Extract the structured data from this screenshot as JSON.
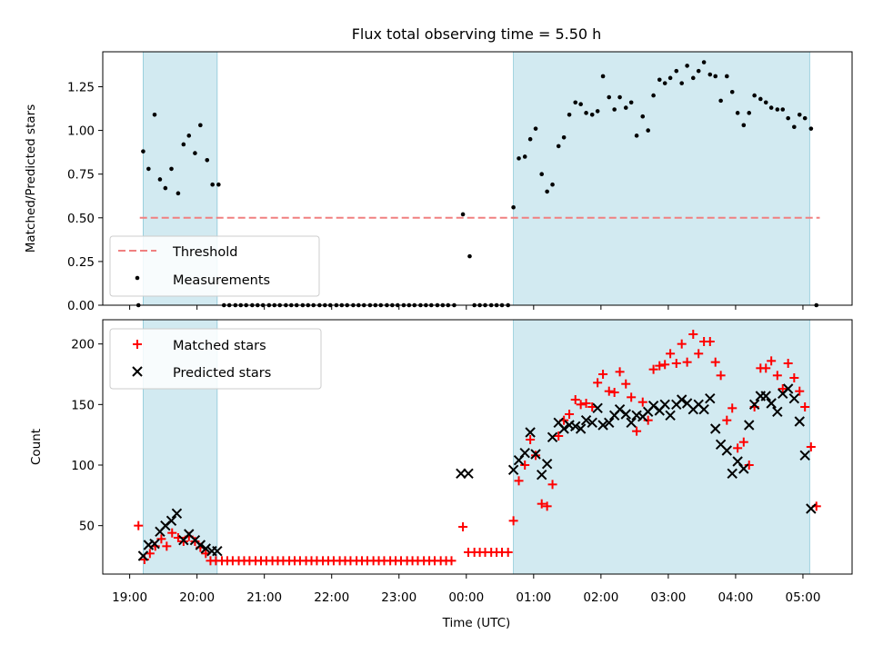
{
  "figure": {
    "title": "Flux total observing time = 5.50 h",
    "xlabel": "Time (UTC)",
    "x_ticks": [
      "19:00",
      "20:00",
      "21:00",
      "22:00",
      "23:00",
      "00:00",
      "01:00",
      "02:00",
      "03:00",
      "04:00",
      "05:00"
    ]
  },
  "chart_data": [
    {
      "type": "scatter",
      "panel": "top",
      "ylabel": "Matched/Predicted stars",
      "ylim": [
        0,
        1.45
      ],
      "xlim_hours": [
        18.6,
        29.73
      ],
      "y_ticks": [
        "0.00",
        "0.25",
        "0.50",
        "0.75",
        "1.00",
        "1.25"
      ],
      "y_tick_values": [
        0,
        0.25,
        0.5,
        0.75,
        1.0,
        1.25
      ],
      "legend": {
        "placement": "lower-left",
        "entries": [
          "Threshold",
          "Measurements"
        ]
      },
      "threshold": {
        "name": "Threshold",
        "value": 0.5,
        "x_range_hours": [
          19.15,
          29.25
        ],
        "color": "#f08080"
      },
      "shaded_hours": [
        [
          19.2,
          20.3
        ],
        [
          24.7,
          29.1
        ]
      ],
      "shade_color": "#add8e6",
      "series": [
        {
          "name": "Measurements",
          "color": "#000000",
          "x_hours": [
            19.13,
            19.2,
            19.28,
            19.37,
            19.45,
            19.53,
            19.62,
            19.72,
            19.8,
            19.88,
            19.97,
            20.05,
            20.15,
            20.23,
            20.32,
            20.4,
            20.48,
            20.57,
            20.65,
            20.73,
            20.82,
            20.9,
            20.98,
            21.07,
            21.15,
            21.23,
            21.32,
            21.4,
            21.48,
            21.57,
            21.65,
            21.73,
            21.82,
            21.9,
            21.98,
            22.07,
            22.15,
            22.23,
            22.32,
            22.4,
            22.48,
            22.57,
            22.65,
            22.73,
            22.82,
            22.9,
            22.98,
            23.07,
            23.15,
            23.23,
            23.32,
            23.4,
            23.48,
            23.57,
            23.65,
            23.73,
            23.82,
            23.95,
            24.05,
            24.12,
            24.2,
            24.28,
            24.37,
            24.45,
            24.53,
            24.62,
            24.7,
            24.78,
            24.87,
            24.95,
            25.03,
            25.12,
            25.2,
            25.28,
            25.37,
            25.45,
            25.53,
            25.62,
            25.7,
            25.78,
            25.87,
            25.95,
            26.03,
            26.12,
            26.2,
            26.28,
            26.37,
            26.45,
            26.53,
            26.62,
            26.7,
            26.78,
            26.87,
            26.95,
            27.03,
            27.12,
            27.2,
            27.28,
            27.37,
            27.45,
            27.53,
            27.62,
            27.7,
            27.78,
            27.87,
            27.95,
            28.03,
            28.12,
            28.2,
            28.28,
            28.37,
            28.45,
            28.53,
            28.62,
            28.7,
            28.78,
            28.87,
            28.95,
            29.03,
            29.12,
            29.2
          ],
          "y": [
            0.0,
            0.88,
            0.78,
            1.09,
            0.72,
            0.67,
            0.78,
            0.64,
            0.92,
            0.97,
            0.87,
            1.03,
            0.83,
            0.69,
            0.69,
            0.0,
            0.0,
            0.0,
            0.0,
            0.0,
            0.0,
            0.0,
            0.0,
            0.0,
            0.0,
            0.0,
            0.0,
            0.0,
            0.0,
            0.0,
            0.0,
            0.0,
            0.0,
            0.0,
            0.0,
            0.0,
            0.0,
            0.0,
            0.0,
            0.0,
            0.0,
            0.0,
            0.0,
            0.0,
            0.0,
            0.0,
            0.0,
            0.0,
            0.0,
            0.0,
            0.0,
            0.0,
            0.0,
            0.0,
            0.0,
            0.0,
            0.0,
            0.52,
            0.28,
            0.0,
            0.0,
            0.0,
            0.0,
            0.0,
            0.0,
            0.0,
            0.56,
            0.84,
            0.85,
            0.95,
            1.01,
            0.75,
            0.65,
            0.69,
            0.91,
            0.96,
            1.09,
            1.16,
            1.15,
            1.1,
            1.09,
            1.11,
            1.31,
            1.19,
            1.12,
            1.19,
            1.13,
            1.16,
            0.97,
            1.08,
            1.0,
            1.2,
            1.29,
            1.27,
            1.3,
            1.34,
            1.27,
            1.37,
            1.3,
            1.34,
            1.39,
            1.32,
            1.31,
            1.17,
            1.31,
            1.22,
            1.1,
            1.03,
            1.1,
            1.2,
            1.18,
            1.16,
            1.13,
            1.12,
            1.12,
            1.07,
            1.02,
            1.09,
            1.07,
            1.01,
            0.0
          ]
        }
      ]
    },
    {
      "type": "scatter",
      "panel": "bottom",
      "ylabel": "Count",
      "ylim": [
        10,
        220
      ],
      "xlim_hours": [
        18.6,
        29.73
      ],
      "y_ticks": [
        "50",
        "100",
        "150",
        "200"
      ],
      "y_tick_values": [
        50,
        100,
        150,
        200
      ],
      "legend": {
        "placement": "upper-left",
        "entries": [
          "Matched stars",
          "Predicted stars"
        ]
      },
      "shaded_hours": [
        [
          19.2,
          20.3
        ],
        [
          24.7,
          29.1
        ]
      ],
      "shade_color": "#add8e6",
      "series": [
        {
          "name": "Matched stars",
          "marker": "plus",
          "color": "#ff0000",
          "x_hours": [
            19.13,
            19.22,
            19.3,
            19.38,
            19.47,
            19.55,
            19.63,
            19.72,
            19.8,
            19.88,
            19.97,
            20.05,
            20.13,
            20.2,
            20.28,
            20.37,
            20.45,
            20.53,
            20.62,
            20.7,
            20.78,
            20.87,
            20.95,
            21.03,
            21.12,
            21.2,
            21.28,
            21.37,
            21.45,
            21.53,
            21.62,
            21.7,
            21.78,
            21.87,
            21.95,
            22.03,
            22.12,
            22.2,
            22.28,
            22.37,
            22.45,
            22.53,
            22.62,
            22.7,
            22.78,
            22.87,
            22.95,
            23.03,
            23.12,
            23.2,
            23.28,
            23.37,
            23.45,
            23.53,
            23.62,
            23.7,
            23.78,
            23.95,
            24.03,
            24.12,
            24.2,
            24.28,
            24.37,
            24.45,
            24.53,
            24.62,
            24.7,
            24.78,
            24.87,
            24.95,
            25.03,
            25.12,
            25.2,
            25.28,
            25.37,
            25.45,
            25.53,
            25.62,
            25.7,
            25.78,
            25.87,
            25.95,
            26.03,
            26.12,
            26.2,
            26.28,
            26.37,
            26.45,
            26.53,
            26.62,
            26.7,
            26.78,
            26.87,
            26.95,
            27.03,
            27.12,
            27.2,
            27.28,
            27.37,
            27.45,
            27.53,
            27.62,
            27.7,
            27.78,
            27.87,
            27.95,
            28.03,
            28.12,
            28.2,
            28.28,
            28.37,
            28.45,
            28.53,
            28.62,
            28.7,
            28.78,
            28.87,
            28.95,
            29.03,
            29.12,
            29.2
          ],
          "y": [
            50,
            22,
            27,
            33,
            39,
            33,
            44,
            40,
            37,
            41,
            37,
            32,
            27,
            21,
            21,
            21,
            21,
            21,
            21,
            21,
            21,
            21,
            21,
            21,
            21,
            21,
            21,
            21,
            21,
            21,
            21,
            21,
            21,
            21,
            21,
            21,
            21,
            21,
            21,
            21,
            21,
            21,
            21,
            21,
            21,
            21,
            21,
            21,
            21,
            21,
            21,
            21,
            21,
            21,
            21,
            21,
            21,
            49,
            28,
            28,
            28,
            28,
            28,
            28,
            28,
            28,
            54,
            87,
            100,
            121,
            108,
            68,
            66,
            84,
            124,
            137,
            142,
            154,
            150,
            151,
            148,
            168,
            175,
            161,
            160,
            177,
            167,
            156,
            128,
            152,
            137,
            179,
            182,
            183,
            192,
            184,
            200,
            185,
            208,
            192,
            202,
            202,
            185,
            174,
            137,
            147,
            114,
            119,
            100,
            148,
            180,
            180,
            186,
            174,
            163,
            184,
            172,
            161,
            148,
            115,
            66
          ]
        },
        {
          "name": "Predicted stars",
          "marker": "x",
          "color": "#000000",
          "x_hours": [
            19.2,
            19.28,
            19.37,
            19.45,
            19.53,
            19.62,
            19.7,
            19.8,
            19.88,
            19.97,
            20.05,
            20.13,
            20.22,
            20.3,
            23.92,
            24.03,
            24.7,
            24.78,
            24.87,
            24.95,
            25.03,
            25.12,
            25.2,
            25.28,
            25.37,
            25.45,
            25.53,
            25.62,
            25.7,
            25.78,
            25.87,
            25.95,
            26.03,
            26.12,
            26.2,
            26.28,
            26.37,
            26.45,
            26.53,
            26.62,
            26.7,
            26.78,
            26.87,
            26.95,
            27.03,
            27.12,
            27.2,
            27.28,
            27.37,
            27.45,
            27.53,
            27.62,
            27.7,
            27.78,
            27.87,
            27.95,
            28.03,
            28.12,
            28.2,
            28.28,
            28.37,
            28.45,
            28.53,
            28.62,
            28.7,
            28.78,
            28.87,
            28.95,
            29.03,
            29.12
          ],
          "y": [
            25,
            34,
            35,
            45,
            50,
            54,
            60,
            38,
            43,
            38,
            34,
            31,
            29,
            29,
            93,
            93,
            96,
            104,
            110,
            127,
            109,
            92,
            101,
            123,
            135,
            130,
            133,
            132,
            130,
            137,
            135,
            147,
            133,
            135,
            141,
            146,
            142,
            135,
            141,
            140,
            144,
            149,
            145,
            150,
            141,
            150,
            154,
            151,
            146,
            150,
            146,
            155,
            130,
            117,
            112,
            93,
            103,
            97,
            133,
            150,
            157,
            157,
            151,
            144,
            159,
            163,
            155,
            136,
            108,
            64
          ]
        }
      ]
    }
  ]
}
